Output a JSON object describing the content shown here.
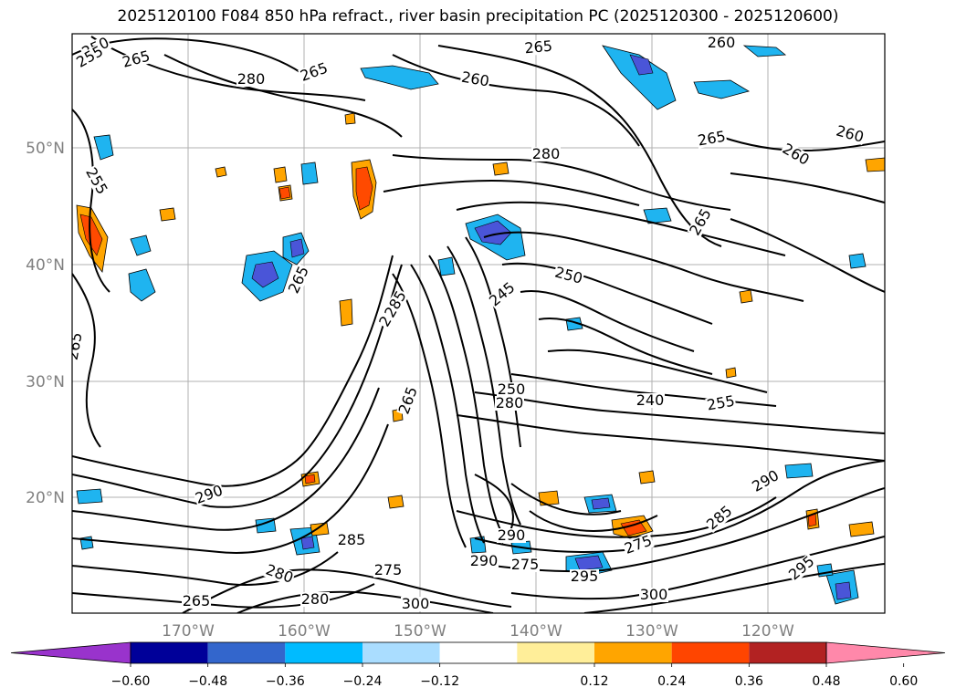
{
  "title": "2025120100 F084 850 hPa refract., river basin precipitation PC (2025120300 - 2025120600)",
  "latitude_labels": [
    "50°N",
    "40°N",
    "30°N",
    "20°N"
  ],
  "longitude_labels": [
    "170°W",
    "160°W",
    "150°W",
    "140°W",
    "130°W",
    "120°W"
  ],
  "contour_labels": [
    "250",
    "255",
    "265",
    "265",
    "260",
    "265",
    "260",
    "260",
    "265",
    "280",
    "280",
    "265",
    "285",
    "250",
    "245",
    "240",
    "265",
    "280",
    "255",
    "290",
    "265",
    "275",
    "285",
    "290",
    "295",
    "300",
    "300",
    "250",
    "255",
    "265",
    "280",
    "280",
    "285",
    "275",
    "280",
    "290",
    "290",
    "295",
    "275",
    "265",
    "260"
  ],
  "colorbar": {
    "tick_labels": [
      "−0.60",
      "−0.48",
      "−0.36",
      "−0.24",
      "−0.12",
      "0.12",
      "0.24",
      "0.36",
      "0.48",
      "0.60"
    ],
    "colors": [
      "#9933cc",
      "#000099",
      "#3366cc",
      "#00bbff",
      "#aaddff",
      "#ffffff",
      "#ffee99",
      "#ffa500",
      "#ff4500",
      "#b22222",
      "#ff88aa"
    ]
  },
  "fill_colors": {
    "blue": "#1fb4f0",
    "purple": "#4a55d8",
    "orange": "#ffa500",
    "red": "#ff4a00"
  }
}
